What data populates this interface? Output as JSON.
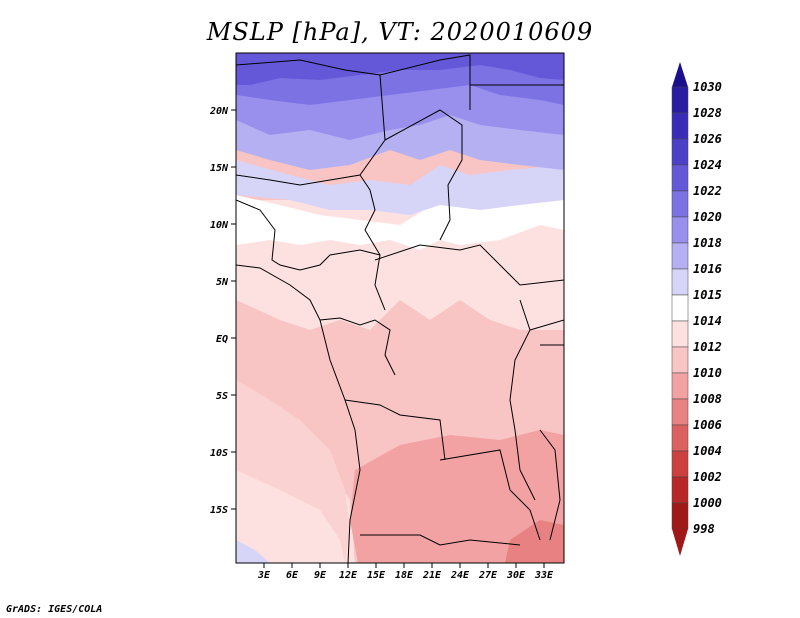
{
  "title": "MSLP [hPa], VT: 2020010609",
  "credit": "GrADS: IGES/COLA",
  "map": {
    "lat_labels": [
      "20N",
      "15N",
      "10N",
      "5N",
      "EQ",
      "5S",
      "10S",
      "15S"
    ],
    "lon_labels": [
      "3E",
      "6E",
      "9E",
      "12E",
      "15E",
      "18E",
      "21E",
      "24E",
      "27E",
      "30E",
      "33E"
    ],
    "region": "Central Africa (Sahara to Angola/Zambia)"
  },
  "legend": {
    "levels": [
      {
        "label": "1030",
        "color": "#1a108c"
      },
      {
        "label": "1028",
        "color": "#2a1da4"
      },
      {
        "label": "1026",
        "color": "#3a2cb8"
      },
      {
        "label": "1024",
        "color": "#4c40c8"
      },
      {
        "label": "1022",
        "color": "#6458d8"
      },
      {
        "label": "1020",
        "color": "#7c72e4"
      },
      {
        "label": "1018",
        "color": "#9890ec"
      },
      {
        "label": "1016",
        "color": "#b4b0f2"
      },
      {
        "label": "1015",
        "color": "#d6d5f8"
      },
      {
        "label": "1014",
        "color": "#ffffff"
      },
      {
        "label": "1012",
        "color": "#fde0e0"
      },
      {
        "label": "1010",
        "color": "#f9c4c4"
      },
      {
        "label": "1008",
        "color": "#f2a2a2"
      },
      {
        "label": "1006",
        "color": "#e88282"
      },
      {
        "label": "1004",
        "color": "#dc6060"
      },
      {
        "label": "1002",
        "color": "#cc4040"
      },
      {
        "label": "1000",
        "color": "#b82828"
      },
      {
        "label": "998",
        "color": "#a01818"
      }
    ],
    "top_arrow_color": "#1a108c",
    "bottom_arrow_color": "#a01818"
  }
}
